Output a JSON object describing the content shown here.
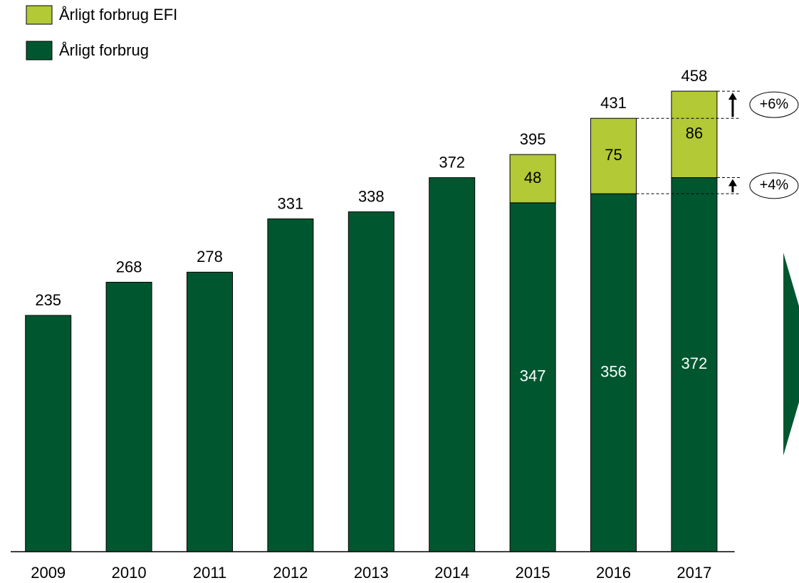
{
  "chart_data": {
    "type": "stacked_bar",
    "categories": [
      "2009",
      "2010",
      "2011",
      "2012",
      "2013",
      "2014",
      "2015",
      "2016",
      "2017"
    ],
    "series": [
      {
        "name": "Årligt forbrug",
        "color": "#00572f",
        "values": [
          235,
          268,
          278,
          331,
          338,
          372,
          347,
          356,
          372
        ]
      },
      {
        "name": "Årligt forbrug EFI",
        "color": "#b3c935",
        "values": [
          null,
          null,
          null,
          null,
          null,
          null,
          48,
          75,
          86
        ]
      }
    ],
    "totals": [
      235,
      268,
      278,
      331,
      338,
      372,
      395,
      431,
      458
    ],
    "annotations": {
      "total_change": "+6%",
      "base_change": "+4%"
    },
    "ylim": [
      0,
      480
    ]
  }
}
